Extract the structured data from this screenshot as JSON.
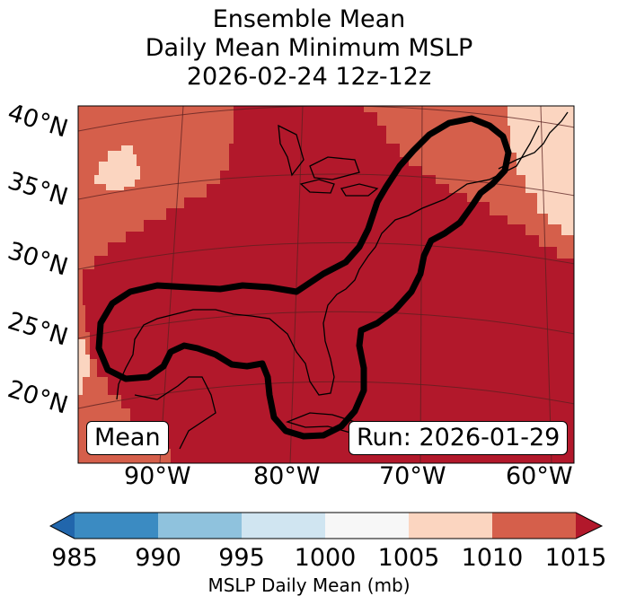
{
  "title": [
    "Ensemble Mean",
    "Daily Mean Minimum MSLP",
    "2026-02-24 12z-12z"
  ],
  "lat_labels": [
    "40°N",
    "35°N",
    "30°N",
    "25°N",
    "20°N"
  ],
  "lon_labels": [
    "90°W",
    "80°W",
    "70°W",
    "60°W"
  ],
  "stat_label": "Mean",
  "run_label": "Run: 2026-01-29",
  "colorbar": {
    "label": "MSLP Daily Mean (mb)",
    "ticks": [
      "985",
      "990",
      "995",
      "1000",
      "1005",
      "1010",
      "1015"
    ],
    "colors": [
      "#3b8bc2",
      "#8fc2dd",
      "#d0e5f1",
      "#f7f7f7",
      "#fbd5c0",
      "#d55f4b",
      "#b2182b"
    ],
    "under_color": "#2166ac",
    "over_color": "#b2182b"
  },
  "map": {
    "fill_colors": {
      "lt1015": "#d55f4b",
      "ge1015_region": "#b2182b",
      "lt1010": "#fbd5c0"
    },
    "contour_color": "#000000",
    "coast_color": "#000000",
    "grid_color": "#5a2020"
  }
}
